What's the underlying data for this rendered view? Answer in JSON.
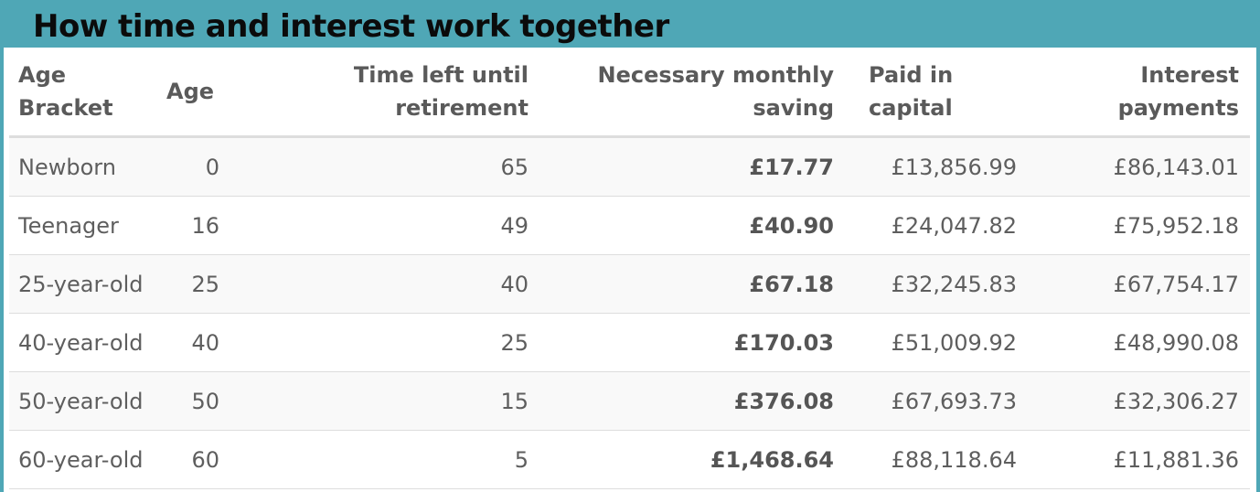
{
  "title": "How time and interest work together",
  "table": {
    "headers": [
      [
        "Age",
        "Bracket"
      ],
      [
        "",
        "Age"
      ],
      [
        "Time left until",
        "retirement"
      ],
      [
        "Necessary monthly",
        "saving"
      ],
      [
        "Paid in",
        "capital"
      ],
      [
        "Interest",
        "payments"
      ]
    ],
    "rows": [
      [
        "Newborn",
        "0",
        "65",
        "£17.77",
        "£13,856.99",
        "£86,143.01"
      ],
      [
        "Teenager",
        "16",
        "49",
        "£40.90",
        "£24,047.82",
        "£75,952.18"
      ],
      [
        "25-year-old",
        "25",
        "40",
        "£67.18",
        "£32,245.83",
        "£67,754.17"
      ],
      [
        "40-year-old",
        "40",
        "25",
        "£170.03",
        "£51,009.92",
        "£48,990.08"
      ],
      [
        "50-year-old",
        "50",
        "15",
        "£376.08",
        "£67,693.73",
        "£32,306.27"
      ],
      [
        "60-year-old",
        "60",
        "5",
        "£1,468.64",
        "£88,118.64",
        "£11,881.36"
      ]
    ]
  },
  "colors": {
    "title_bar": "#4fa7b6",
    "stripe": "#f9f9f9",
    "text": "#5e5e5e",
    "border": "#dddddd"
  }
}
